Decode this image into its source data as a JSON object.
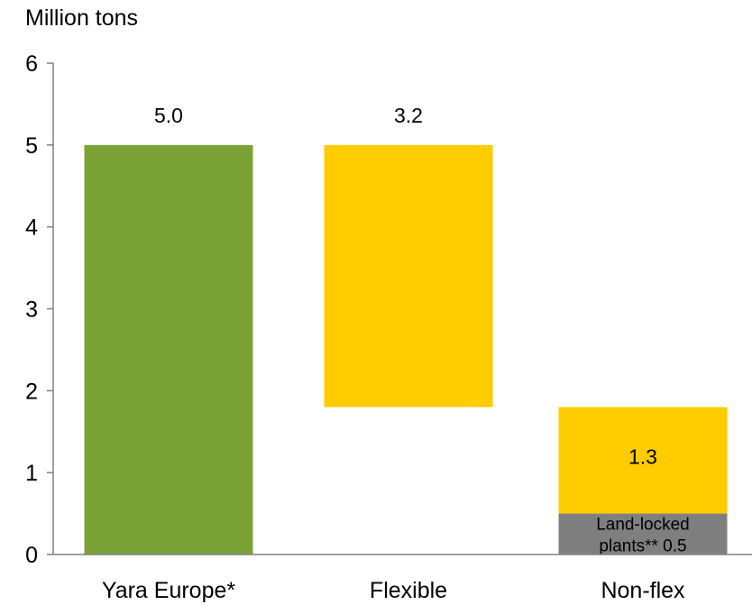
{
  "chart_data": {
    "type": "bar",
    "ylabel": "Million tons",
    "ylim": [
      0,
      6
    ],
    "yticks": [
      "0",
      "1",
      "2",
      "3",
      "4",
      "5",
      "6"
    ],
    "grid": false,
    "categories": [
      "Yara Europe*",
      "Flexible",
      "Non-flex"
    ],
    "segments": [
      {
        "category": "Yara Europe*",
        "base": 0,
        "top": 5.0,
        "value": 5.0,
        "label": "5.0",
        "color": "#7ba237"
      },
      {
        "category": "Flexible",
        "base": 1.8,
        "top": 5.0,
        "value": 3.2,
        "label": "3.2",
        "color": "#ffcc00"
      },
      {
        "category": "Non-flex",
        "base": 0.5,
        "top": 1.8,
        "value": 1.3,
        "label": "1.3",
        "color": "#ffcc00"
      },
      {
        "category": "Non-flex",
        "base": 0,
        "top": 0.5,
        "value": 0.5,
        "label": "Land-locked plants** 0.5",
        "label_lines": [
          "Land-locked",
          "plants** 0.5"
        ],
        "color": "#7f7f7f"
      }
    ]
  }
}
